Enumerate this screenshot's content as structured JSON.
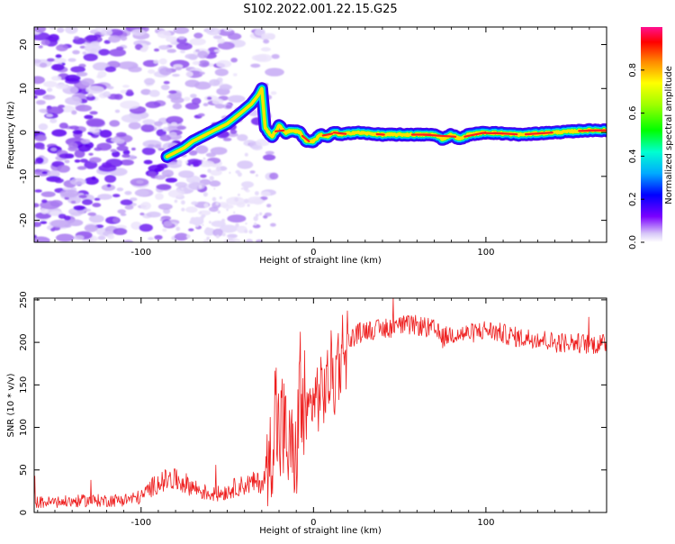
{
  "title": "S102.2022.001.22.15.G25",
  "colorbar": {
    "label": "Normalized spectral amplitude",
    "ticks": [
      0.0,
      0.2,
      0.4,
      0.6,
      0.8
    ],
    "tick_labels": [
      "0.0",
      "0.2",
      "0.4",
      "0.6",
      "0.8"
    ]
  },
  "chart_data": [
    {
      "type": "heatmap",
      "name": "spectrogram",
      "xlabel": "Height of straight line (km)",
      "ylabel": "Frequency (Hz)",
      "xlim": [
        -162,
        170
      ],
      "ylim": [
        -25,
        24
      ],
      "x_ticks": [
        -100,
        0,
        100
      ],
      "x_tick_labels": [
        "-100",
        "0",
        "100"
      ],
      "y_ticks": [
        -20,
        -10,
        0,
        10,
        20
      ],
      "y_tick_labels": [
        "-20",
        "-10",
        "0",
        "10",
        "20"
      ],
      "zlim": [
        0,
        1
      ],
      "ridge": {
        "x": [
          -85,
          -75,
          -70,
          -60,
          -50,
          -42,
          -36,
          -32,
          -30,
          -28,
          -24,
          -20,
          -16,
          -12,
          -8,
          -4,
          0,
          4,
          8,
          12,
          16,
          24,
          40,
          60,
          70,
          75,
          80,
          85,
          90,
          100,
          120,
          140,
          160,
          170
        ],
        "y": [
          -5.5,
          -3.5,
          -2,
          0,
          2,
          4.5,
          6.5,
          8.5,
          10,
          1,
          -1,
          1.5,
          0,
          0.5,
          0,
          -2,
          -2,
          -0.5,
          -1,
          0,
          -0.5,
          0,
          -0.5,
          -0.5,
          -0.5,
          -1.5,
          -0.5,
          -1.5,
          -0.5,
          0,
          -0.5,
          0,
          0.5,
          0.5
        ]
      }
    },
    {
      "type": "line",
      "name": "snr",
      "xlabel": "Height of straight line (km)",
      "ylabel": "SNR (10 * v/v)",
      "xlim": [
        -162,
        170
      ],
      "ylim": [
        0,
        252
      ],
      "x_ticks": [
        -100,
        0,
        100
      ],
      "x_tick_labels": [
        "-100",
        "0",
        "100"
      ],
      "y_ticks": [
        0,
        50,
        100,
        150,
        200,
        250
      ],
      "y_tick_labels": [
        "0",
        "50",
        "100",
        "150",
        "200",
        "250"
      ],
      "series_color": "#ee2020",
      "series": [
        {
          "x": [
            -162,
            -150,
            -140,
            -130,
            -120,
            -110,
            -100,
            -95,
            -90,
            -85,
            -80,
            -75,
            -70,
            -65,
            -60,
            -55,
            -50,
            -45,
            -40,
            -35,
            -30,
            -28,
            -25,
            -22,
            -20,
            -18,
            -15,
            -12,
            -10,
            -8,
            -5,
            0,
            5,
            8,
            10,
            12,
            15,
            20,
            25,
            30,
            40,
            50,
            60,
            70,
            75,
            80,
            90,
            100,
            110,
            120,
            130,
            140,
            150,
            160,
            170
          ],
          "y": [
            12,
            12,
            13,
            14,
            14,
            15,
            18,
            28,
            35,
            38,
            38,
            35,
            30,
            25,
            22,
            22,
            25,
            30,
            32,
            35,
            35,
            40,
            70,
            120,
            90,
            100,
            75,
            70,
            60,
            140,
            110,
            135,
            140,
            150,
            165,
            155,
            185,
            200,
            210,
            215,
            215,
            220,
            220,
            215,
            205,
            210,
            210,
            215,
            210,
            205,
            205,
            200,
            200,
            198,
            198
          ]
        }
      ]
    }
  ]
}
